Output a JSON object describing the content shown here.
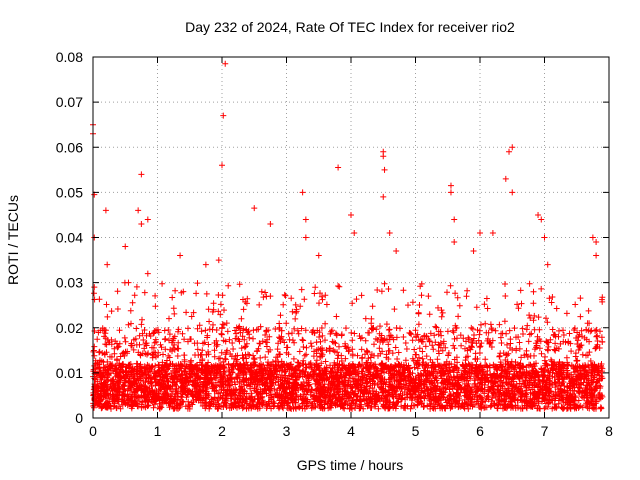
{
  "chart_data": {
    "type": "scatter",
    "title": "Day 232 of 2024, Rate Of TEC Index for receiver rio2",
    "xlabel": "GPS time / hours",
    "ylabel": "ROTI / TECUs",
    "xlim": [
      0,
      8
    ],
    "ylim": [
      0,
      0.08
    ],
    "xticks": [
      0,
      1,
      2,
      3,
      4,
      5,
      6,
      7,
      8
    ],
    "xtick_labels": [
      "0",
      "1",
      "2",
      "3",
      "4",
      "5",
      "6",
      "7",
      "8"
    ],
    "yticks": [
      0,
      0.01,
      0.02,
      0.03,
      0.04,
      0.05,
      0.06,
      0.07,
      0.08
    ],
    "ytick_labels": [
      "0",
      "0.01",
      "0.02",
      "0.03",
      "0.04",
      "0.05",
      "0.06",
      "0.07",
      "0.08"
    ],
    "grid": true,
    "marker": "+",
    "marker_color": "#ff0000",
    "series": [
      {
        "name": "ROTI",
        "points": [
          [
            0.0,
            0.065
          ],
          [
            0.0,
            0.063
          ],
          [
            0.02,
            0.0495
          ],
          [
            0.02,
            0.04
          ],
          [
            0.02,
            0.029
          ],
          [
            0.2,
            0.046
          ],
          [
            0.22,
            0.034
          ],
          [
            0.5,
            0.038
          ],
          [
            0.55,
            0.03
          ],
          [
            0.7,
            0.046
          ],
          [
            0.75,
            0.054
          ],
          [
            0.75,
            0.043
          ],
          [
            0.85,
            0.044
          ],
          [
            0.85,
            0.032
          ],
          [
            1.35,
            0.036
          ],
          [
            1.4,
            0.028
          ],
          [
            1.75,
            0.034
          ],
          [
            1.95,
            0.035
          ],
          [
            2.0,
            0.056
          ],
          [
            2.02,
            0.067
          ],
          [
            2.05,
            0.0785
          ],
          [
            2.5,
            0.0465
          ],
          [
            2.75,
            0.043
          ],
          [
            2.75,
            0.027
          ],
          [
            3.25,
            0.05
          ],
          [
            3.3,
            0.044
          ],
          [
            3.3,
            0.04
          ],
          [
            3.5,
            0.036
          ],
          [
            3.8,
            0.0555
          ],
          [
            4.0,
            0.045
          ],
          [
            4.05,
            0.041
          ],
          [
            4.5,
            0.058
          ],
          [
            4.5,
            0.059
          ],
          [
            4.52,
            0.055
          ],
          [
            4.5,
            0.049
          ],
          [
            4.6,
            0.041
          ],
          [
            4.7,
            0.037
          ],
          [
            5.2,
            0.027
          ],
          [
            5.55,
            0.0515
          ],
          [
            5.55,
            0.05
          ],
          [
            5.6,
            0.044
          ],
          [
            5.6,
            0.039
          ],
          [
            5.9,
            0.037
          ],
          [
            6.0,
            0.041
          ],
          [
            6.2,
            0.041
          ],
          [
            6.4,
            0.053
          ],
          [
            6.45,
            0.059
          ],
          [
            6.5,
            0.06
          ],
          [
            6.5,
            0.05
          ],
          [
            6.9,
            0.045
          ],
          [
            6.95,
            0.044
          ],
          [
            7.0,
            0.04
          ],
          [
            7.05,
            0.034
          ],
          [
            7.75,
            0.04
          ],
          [
            7.8,
            0.039
          ],
          [
            7.8,
            0.036
          ]
        ]
      }
    ]
  }
}
